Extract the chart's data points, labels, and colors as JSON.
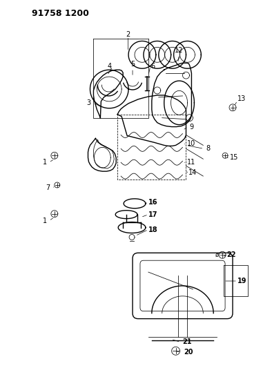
{
  "title_code": "91758 1200",
  "bg": "#ffffff",
  "lc": "#000000",
  "lw": 1.0,
  "lw_thin": 0.55
}
